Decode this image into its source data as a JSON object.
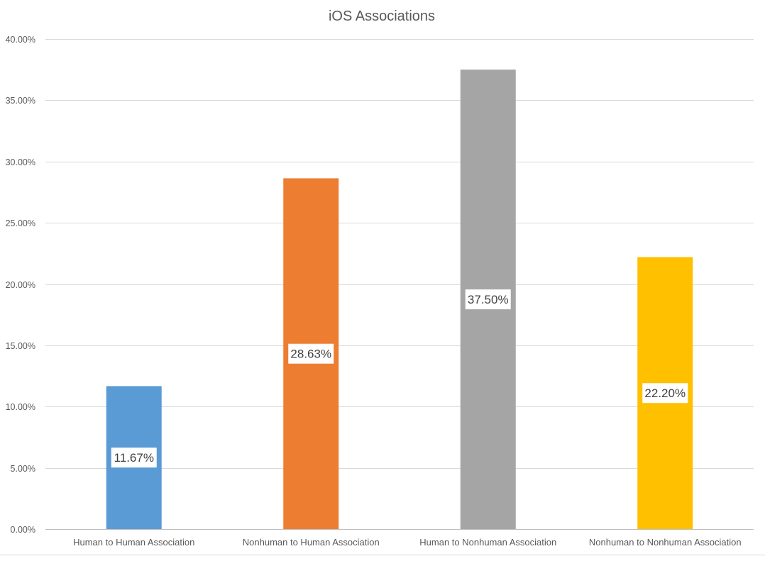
{
  "chart_data": {
    "type": "bar",
    "title": "iOS Associations",
    "xlabel": "",
    "ylabel": "",
    "categories": [
      "Human to Human Association",
      "Nonhuman to Human Association",
      "Human to Nonhuman Association",
      "Nonhuman to Nonhuman Association"
    ],
    "values": [
      11.67,
      28.63,
      37.5,
      22.2
    ],
    "value_labels": [
      "11.67%",
      "28.63%",
      "37.50%",
      "22.20%"
    ],
    "colors": [
      "#5b9bd5",
      "#ed7d31",
      "#a5a5a5",
      "#ffc000"
    ],
    "ylim": [
      0,
      40
    ],
    "yticks": [
      0,
      5,
      10,
      15,
      20,
      25,
      30,
      35,
      40
    ],
    "ytick_labels": [
      "0.00%",
      "5.00%",
      "10.00%",
      "15.00%",
      "20.00%",
      "25.00%",
      "30.00%",
      "35.00%",
      "40.00%"
    ],
    "grid": true,
    "legend": "none"
  }
}
